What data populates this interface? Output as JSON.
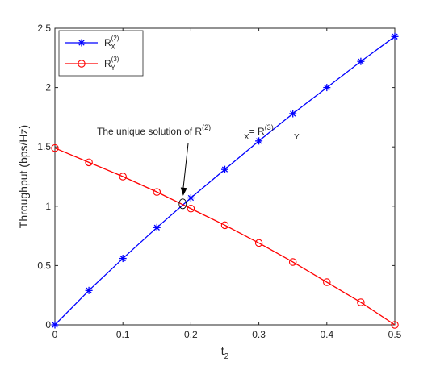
{
  "chart_data": {
    "type": "line",
    "xlabel": "t",
    "xlabel_sub": "2",
    "ylabel": "Throughput (bps/Hz)",
    "xlim": [
      0,
      0.5
    ],
    "ylim": [
      0,
      2.5
    ],
    "xticks": [
      "0",
      "0.1",
      "0.2",
      "0.3",
      "0.4",
      "0.5"
    ],
    "yticks": [
      "0",
      "0.5",
      "1",
      "1.5",
      "2",
      "2.5"
    ],
    "grid": false,
    "legend_position": "top-left",
    "series": [
      {
        "name": "R",
        "name_sub": "X",
        "name_sup": "(2)",
        "color": "#0000ff",
        "marker": "asterisk",
        "x": [
          0,
          0.05,
          0.1,
          0.15,
          0.2,
          0.25,
          0.3,
          0.35,
          0.4,
          0.45,
          0.5
        ],
        "y": [
          0,
          0.29,
          0.56,
          0.82,
          1.07,
          1.31,
          1.55,
          1.78,
          2.0,
          2.22,
          2.43
        ]
      },
      {
        "name": "R",
        "name_sub": "Y",
        "name_sup": "(3)",
        "color": "#ff0000",
        "marker": "circle",
        "x": [
          0,
          0.05,
          0.1,
          0.15,
          0.2,
          0.25,
          0.3,
          0.35,
          0.4,
          0.45,
          0.5
        ],
        "y": [
          1.49,
          1.37,
          1.25,
          1.12,
          0.98,
          0.84,
          0.69,
          0.53,
          0.36,
          0.19,
          0.0
        ]
      }
    ],
    "annotation": {
      "text_prefix": "The unique solution of R",
      "mid": "= R",
      "sub1": "X",
      "sup1": "(2)",
      "sub2": "Y",
      "sup2": "(3)",
      "point": [
        0.188,
        1.02
      ]
    }
  }
}
